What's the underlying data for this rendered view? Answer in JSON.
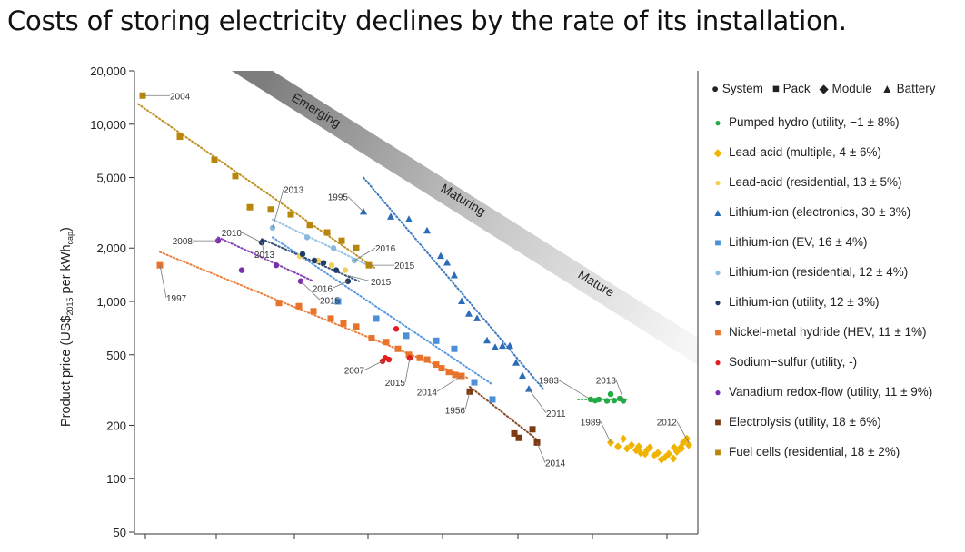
{
  "title": "Costs of storing electricity declines by the rate of its installation.",
  "chart_data": {
    "type": "scatter",
    "yscale": "log",
    "ylim": [
      50,
      20000
    ],
    "ylabel": "Product price (US$2015 per kWhcap)",
    "ylabel_main": "Product price (US$",
    "ylabel_sub": "2015",
    "ylabel_mid": " per kWh",
    "ylabel_sub2": "cap",
    "ylabel_end": ")",
    "yticks": [
      50,
      100,
      200,
      500,
      1000,
      2000,
      5000,
      10000,
      20000
    ],
    "ytick_labels": [
      "50",
      "100",
      "200",
      "500",
      "1,000",
      "2,000",
      "5,000",
      "10,000",
      "20,000"
    ],
    "bands": [
      "Emerging",
      "Maturing",
      "Mature"
    ],
    "shape_legend": [
      "● System",
      "■ Pack",
      "◆ Module",
      "▲ Battery"
    ],
    "series": [
      {
        "name": "Pumped hydro (utility, −1 ± 8%)",
        "color": "#22aa44",
        "marker": "circle",
        "points": [
          [
            650,
            280
          ],
          [
            659,
            280
          ],
          [
            668,
            275
          ],
          [
            676,
            276
          ],
          [
            682,
            283
          ],
          [
            686,
            275
          ],
          [
            655,
            276
          ],
          [
            672,
            300
          ]
        ],
        "trend": [
          [
            636,
            280
          ],
          [
            692,
            280
          ]
        ]
      },
      {
        "name": "Lead-acid (multiple, 4 ± 6%)",
        "color": "#f0b400",
        "marker": "diamond",
        "points": [
          [
            672,
            160
          ],
          [
            680,
            152
          ],
          [
            686,
            168
          ],
          [
            690,
            148
          ],
          [
            695,
            155
          ],
          [
            700,
            145
          ],
          [
            705,
            140
          ],
          [
            710,
            138
          ],
          [
            715,
            150
          ],
          [
            720,
            135
          ],
          [
            724,
            140
          ],
          [
            728,
            128
          ],
          [
            732,
            132
          ],
          [
            736,
            138
          ],
          [
            741,
            130
          ],
          [
            745,
            142
          ],
          [
            749,
            150
          ],
          [
            752,
            160
          ],
          [
            756,
            168
          ],
          [
            758,
            155
          ],
          [
            703,
            152
          ],
          [
            712,
            145
          ],
          [
            742,
            150
          ],
          [
            750,
            148
          ]
        ],
        "trend": []
      },
      {
        "name": "Lead-acid (residential, 13 ± 5%)",
        "color": "#f2d15a",
        "marker": "circle",
        "points": [
          [
            330,
            1800
          ],
          [
            350,
            1700
          ],
          [
            365,
            1600
          ],
          [
            380,
            1500
          ]
        ],
        "trend": []
      },
      {
        "name": "Lithium-ion (electronics, 30 ± 3%)",
        "color": "#2b6cb8",
        "marker": "triangle",
        "points": [
          [
            400,
            3200
          ],
          [
            430,
            3000
          ],
          [
            450,
            2900
          ],
          [
            470,
            2500
          ],
          [
            485,
            1800
          ],
          [
            492,
            1650
          ],
          [
            500,
            1400
          ],
          [
            508,
            1000
          ],
          [
            516,
            850
          ],
          [
            525,
            800
          ],
          [
            536,
            600
          ],
          [
            545,
            550
          ],
          [
            553,
            560
          ],
          [
            561,
            560
          ],
          [
            568,
            450
          ],
          [
            575,
            380
          ],
          [
            582,
            320
          ]
        ],
        "trend": [
          [
            400,
            5000
          ],
          [
            598,
            320
          ]
        ]
      },
      {
        "name": "Lithium-ion (EV, 16 ± 4%)",
        "color": "#4a90d9",
        "marker": "square",
        "points": [
          [
            372,
            1000
          ],
          [
            414,
            800
          ],
          [
            447,
            640
          ],
          [
            480,
            600
          ],
          [
            500,
            540
          ],
          [
            522,
            350
          ],
          [
            542,
            280
          ]
        ],
        "trend": [
          [
            300,
            2300
          ],
          [
            542,
            340
          ]
        ]
      },
      {
        "name": "Lithium-ion (residential, 12 ± 4%)",
        "color": "#8bbce0",
        "marker": "circle",
        "points": [
          [
            300,
            2600
          ],
          [
            338,
            2300
          ],
          [
            367,
            2000
          ],
          [
            390,
            1700
          ]
        ],
        "trend": [
          [
            300,
            2900
          ],
          [
            405,
            1600
          ]
        ]
      },
      {
        "name": "Lithium-ion (utility, 12 ± 3%)",
        "color": "#1f3d66",
        "marker": "circle",
        "points": [
          [
            288,
            2150
          ],
          [
            333,
            1850
          ],
          [
            346,
            1700
          ],
          [
            356,
            1650
          ],
          [
            370,
            1500
          ],
          [
            383,
            1300
          ]
        ],
        "trend": [
          [
            288,
            2250
          ],
          [
            395,
            1300
          ]
        ]
      },
      {
        "name": "Nickel-metal hydride (HEV, 11 ± 1%)",
        "color": "#e8732a",
        "marker": "square",
        "points": [
          [
            176,
            1600
          ],
          [
            307,
            980
          ],
          [
            329,
            940
          ],
          [
            345,
            880
          ],
          [
            364,
            800
          ],
          [
            378,
            750
          ],
          [
            392,
            720
          ],
          [
            409,
            620
          ],
          [
            425,
            590
          ],
          [
            438,
            540
          ],
          [
            450,
            500
          ],
          [
            462,
            480
          ],
          [
            470,
            470
          ],
          [
            480,
            440
          ],
          [
            486,
            420
          ],
          [
            494,
            400
          ],
          [
            501,
            385
          ],
          [
            508,
            380
          ]
        ],
        "trend": [
          [
            176,
            1900
          ],
          [
            515,
            370
          ]
        ]
      },
      {
        "name": "Sodium−sulfur (utility, -)",
        "color": "#e01e1e",
        "marker": "circle",
        "points": [
          [
            421,
            460
          ],
          [
            424,
            480
          ],
          [
            428,
            470
          ],
          [
            451,
            480
          ],
          [
            436,
            700
          ]
        ],
        "trend": []
      },
      {
        "name": "Vanadium redox-flow (utility, 11 ± 9%)",
        "color": "#7a2fb0",
        "marker": "circle",
        "points": [
          [
            240,
            2200
          ],
          [
            266,
            1500
          ],
          [
            304,
            1600
          ],
          [
            331,
            1300
          ]
        ],
        "trend": [
          [
            240,
            2300
          ],
          [
            345,
            1300
          ]
        ]
      },
      {
        "name": "Electrolysis (utility, 18 ± 6%)",
        "color": "#7b3a12",
        "marker": "square",
        "points": [
          [
            517,
            310
          ],
          [
            566,
            180
          ],
          [
            571,
            170
          ],
          [
            586,
            190
          ],
          [
            591,
            160
          ]
        ],
        "trend": [
          [
            517,
            330
          ],
          [
            595,
            160
          ]
        ]
      },
      {
        "name": "Fuel cells (residential, 18 ± 2%)",
        "color": "#b8860b",
        "marker": "square",
        "points": [
          [
            157,
            14500
          ],
          [
            198,
            8500
          ],
          [
            236,
            6300
          ],
          [
            259,
            5100
          ],
          [
            275,
            3400
          ],
          [
            298,
            3300
          ],
          [
            320,
            3100
          ],
          [
            341,
            2700
          ],
          [
            360,
            2450
          ],
          [
            376,
            2200
          ],
          [
            392,
            2000
          ],
          [
            406,
            1600
          ]
        ],
        "trend": [
          [
            152,
            13000
          ],
          [
            412,
            1550
          ]
        ]
      }
    ],
    "annotations": [
      {
        "text": "2004",
        "x": 157,
        "y": 14500,
        "lx": 187,
        "ly": 14500
      },
      {
        "text": "1997",
        "x": 176,
        "y": 1600,
        "lx": 183,
        "ly": 1050
      },
      {
        "text": "2008",
        "x": 240,
        "y": 2200,
        "lx": 212,
        "ly": 2200
      },
      {
        "text": "2010",
        "x": 288,
        "y": 2150,
        "lx": 266,
        "ly": 2450
      },
      {
        "text": "2013",
        "x": 300,
        "y": 2600,
        "lx": 312,
        "ly": 4300
      },
      {
        "text": "2013",
        "x": 288,
        "y": 2150,
        "lx": 291,
        "ly": 1850
      },
      {
        "text": "2016",
        "x": 390,
        "y": 1700,
        "lx": 413,
        "ly": 2000
      },
      {
        "text": "2015",
        "x": 406,
        "y": 1600,
        "lx": 434,
        "ly": 1600
      },
      {
        "text": "2015",
        "x": 383,
        "y": 1400,
        "lx": 408,
        "ly": 1300
      },
      {
        "text": "2016",
        "x": 383,
        "y": 1300,
        "lx": 366,
        "ly": 1190
      },
      {
        "text": "2015",
        "x": 331,
        "y": 1300,
        "lx": 352,
        "ly": 1020
      },
      {
        "text": "1995",
        "x": 400,
        "y": 3200,
        "lx": 383,
        "ly": 3900
      },
      {
        "text": "2007",
        "x": 421,
        "y": 460,
        "lx": 401,
        "ly": 410
      },
      {
        "text": "2015",
        "x": 451,
        "y": 480,
        "lx": 446,
        "ly": 350
      },
      {
        "text": "2014",
        "x": 508,
        "y": 380,
        "lx": 481,
        "ly": 310
      },
      {
        "text": "1956",
        "x": 517,
        "y": 310,
        "lx": 512,
        "ly": 245
      },
      {
        "text": "2011",
        "x": 582,
        "y": 320,
        "lx": 601,
        "ly": 235
      },
      {
        "text": "1983",
        "x": 650,
        "y": 280,
        "lx": 615,
        "ly": 360
      },
      {
        "text": "2013",
        "x": 686,
        "y": 280,
        "lx": 678,
        "ly": 360
      },
      {
        "text": "1989",
        "x": 672,
        "y": 160,
        "lx": 661,
        "ly": 210
      },
      {
        "text": "2012",
        "x": 758,
        "y": 160,
        "lx": 745,
        "ly": 210
      },
      {
        "text": "2014",
        "x": 591,
        "y": 160,
        "lx": 600,
        "ly": 123
      }
    ]
  }
}
